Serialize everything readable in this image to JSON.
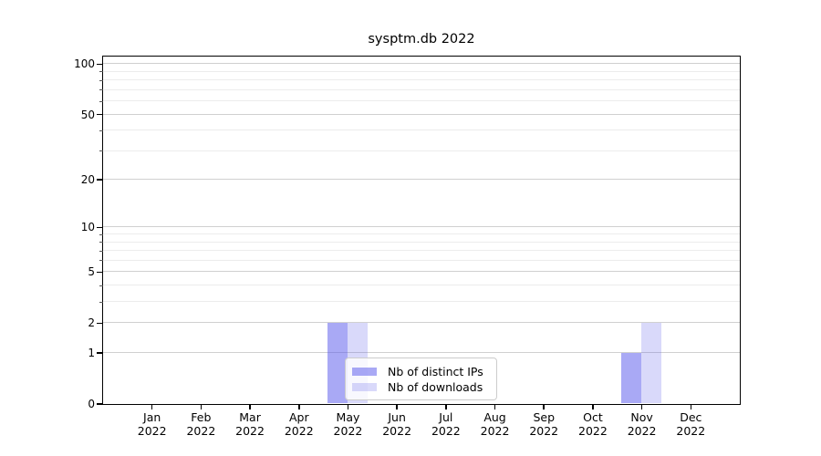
{
  "title": "sysptm.db 2022",
  "chart_data": {
    "type": "bar",
    "title": "sysptm.db 2022",
    "categories": [
      "Jan 2022",
      "Feb 2022",
      "Mar 2022",
      "Apr 2022",
      "May 2022",
      "Jun 2022",
      "Jul 2022",
      "Aug 2022",
      "Sep 2022",
      "Oct 2022",
      "Nov 2022",
      "Dec 2022"
    ],
    "series": [
      {
        "name": "Nb of distinct IPs",
        "values": [
          0,
          0,
          0,
          0,
          2,
          0,
          0,
          0,
          0,
          0,
          1,
          0
        ],
        "color": "rgba(90,90,235,0.52)"
      },
      {
        "name": "Nb of downloads",
        "values": [
          0,
          0,
          0,
          0,
          2,
          0,
          0,
          0,
          0,
          0,
          2,
          0
        ],
        "color": "rgba(90,90,235,0.23)"
      }
    ],
    "xlabel": "",
    "ylabel": "",
    "y_axis": {
      "scale": "log1p",
      "major_ticks": [
        0,
        1,
        2,
        5,
        10,
        20,
        50,
        100
      ],
      "minor_ticks": [
        3,
        4,
        6,
        7,
        8,
        9,
        30,
        40,
        60,
        70,
        80,
        90
      ],
      "top": 111
    },
    "legend": {
      "position": "lower center",
      "entries": [
        "Nb of distinct IPs",
        "Nb of downloads"
      ]
    },
    "grid": true
  },
  "colors": {
    "bar_distinct_ips_rendered": "#a9a9f3",
    "bar_downloads_rendered": "#d9d9f8",
    "grid_major": "#d0d0d0",
    "grid_minor": "#ececec",
    "spine": "#000000",
    "background": "#ffffff"
  }
}
